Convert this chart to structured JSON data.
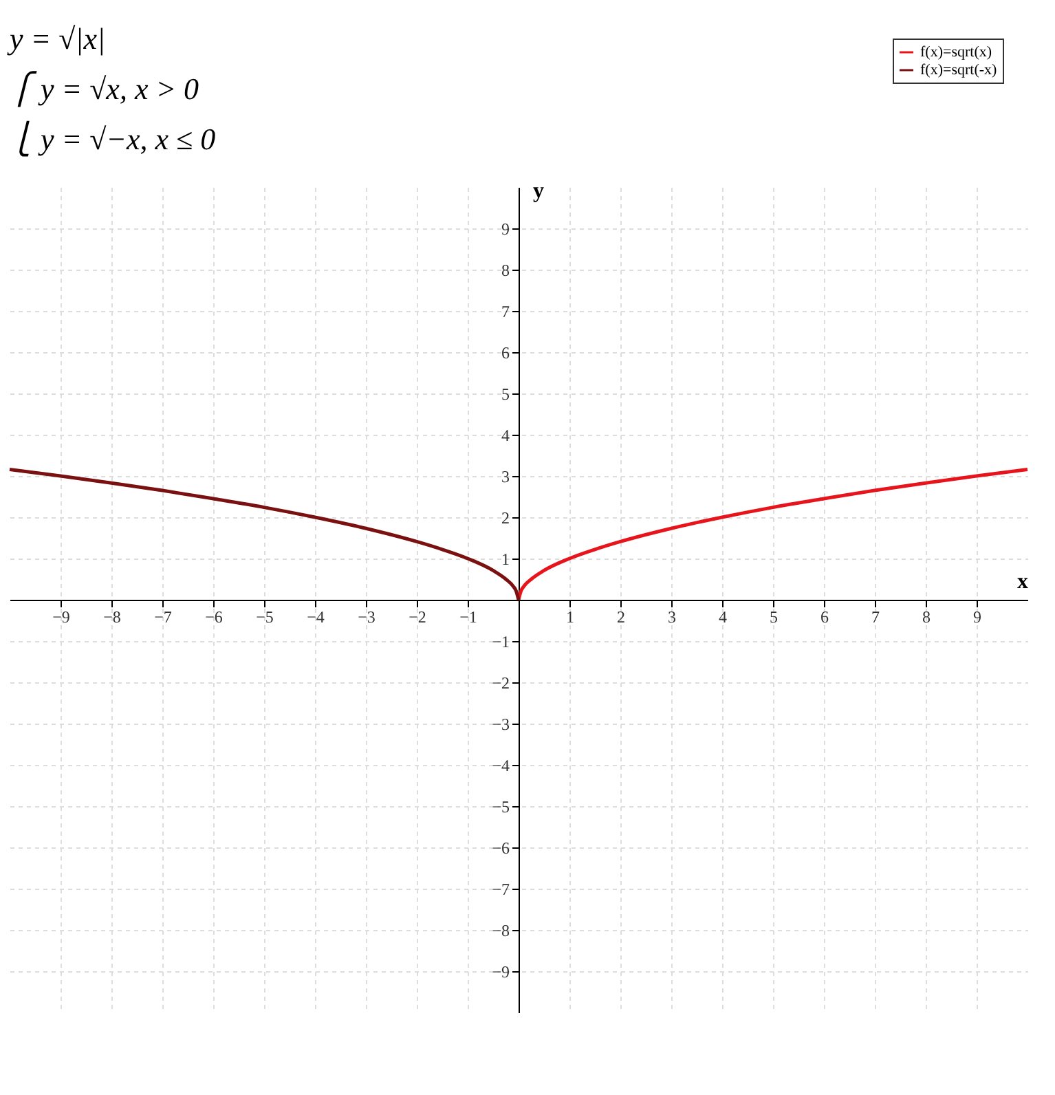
{
  "chart_data": {
    "type": "line",
    "annotations": [
      "y = √|x|",
      "⎧ y = √x,       x > 0",
      "⎩ y = √−x,      x ≤ 0"
    ],
    "xlabel": "x",
    "ylabel": "y",
    "xlim": [
      -10,
      10
    ],
    "ylim": [
      -10,
      10
    ],
    "xticks": [
      -9,
      -8,
      -7,
      -6,
      -5,
      -4,
      -3,
      -2,
      -1,
      1,
      2,
      3,
      4,
      5,
      6,
      7,
      8,
      9
    ],
    "yticks": [
      -9,
      -8,
      -7,
      -6,
      -5,
      -4,
      -3,
      -2,
      -1,
      1,
      2,
      3,
      4,
      5,
      6,
      7,
      8,
      9
    ],
    "grid": true,
    "legend": "top right",
    "marker": "none",
    "line_style": "solid",
    "series": [
      {
        "name": "f(x)=sqrt(x)",
        "color": "#e8141c",
        "x": [
          0,
          0.05,
          0.1,
          0.25,
          0.5,
          1,
          1.5,
          2,
          3,
          4,
          5,
          6,
          7,
          8,
          9,
          10
        ],
        "values": [
          0,
          0.22,
          0.32,
          0.5,
          0.71,
          1,
          1.22,
          1.41,
          1.73,
          2,
          2.24,
          2.45,
          2.65,
          2.83,
          3,
          3.16
        ]
      },
      {
        "name": "f(x)=sqrt(-x)",
        "color": "#7a1010",
        "x": [
          -10,
          -9,
          -8,
          -7,
          -6,
          -5,
          -4,
          -3,
          -2,
          -1.5,
          -1,
          -0.5,
          -0.25,
          -0.1,
          -0.05,
          0
        ],
        "values": [
          3.16,
          3,
          2.83,
          2.65,
          2.45,
          2.24,
          2,
          1.73,
          1.41,
          1.22,
          1,
          0.71,
          0.5,
          0.32,
          0.22,
          0
        ]
      }
    ]
  }
}
